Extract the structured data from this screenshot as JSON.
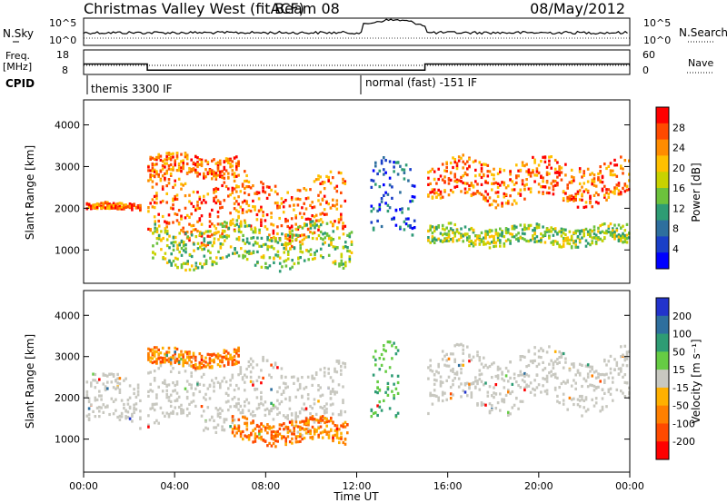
{
  "header": {
    "station": "Christmas Valley West (fitACF)",
    "beam": "Beam 08",
    "date": "08/May/2012"
  },
  "chart_data": [
    {
      "type": "line",
      "id": "nsky-nsearch",
      "left_label": "N.Sky",
      "right_label": "N.Search",
      "y_ticks_left": [
        "10^5",
        "10^0"
      ],
      "y_ticks_right": [
        "10^5",
        "10^0"
      ],
      "x_range_hours": [
        0,
        24
      ],
      "note": "noise level traces"
    },
    {
      "type": "line",
      "id": "freq-nave",
      "left_label": "Freq. [MHz]",
      "right_label": "Nave",
      "y_ticks_left": [
        "18",
        "8"
      ],
      "y_ticks_right": [
        "60",
        "0"
      ],
      "freq_steps": [
        {
          "from_hour": 0.0,
          "to_hour": 2.8,
          "value": 13.0
        },
        {
          "from_hour": 2.8,
          "to_hour": 12.1,
          "value": 10.5
        },
        {
          "from_hour": 12.1,
          "to_hour": 15.0,
          "value": 10.5
        },
        {
          "from_hour": 15.0,
          "to_hour": 24.0,
          "value": 13.0
        }
      ]
    },
    {
      "type": "table",
      "id": "cpid",
      "label": "CPID",
      "segments": [
        {
          "from_hour": 0.0,
          "to_hour": 12.1,
          "text": "themis 3300 IF"
        },
        {
          "from_hour": 12.1,
          "to_hour": 24.0,
          "text": "normal (fast) -151 IF"
        }
      ]
    },
    {
      "type": "heatmap",
      "id": "power",
      "ylabel": "Slant Range [km]",
      "ylim": [
        200,
        4600
      ],
      "y_ticks": [
        1000,
        2000,
        3000,
        4000
      ],
      "x_range_hours": [
        0,
        24
      ],
      "colorbar": {
        "label": "Power [dB]",
        "ticks": [
          "28",
          "24",
          "20",
          "16",
          "12",
          "8",
          "4"
        ],
        "colors": [
          "#ff0000",
          "#ff4a00",
          "#ff8c00",
          "#ffc000",
          "#c8d200",
          "#6cc23c",
          "#2e9c74",
          "#2e6f9e",
          "#1a3fc8",
          "#0000ff"
        ]
      },
      "bands": [
        {
          "from_hour": 0.1,
          "to_hour": 2.5,
          "range_start": 2000,
          "range_end": 2150,
          "level": "high"
        },
        {
          "from_hour": 2.8,
          "to_hour": 6.8,
          "range_start": 2800,
          "range_end": 3300,
          "level": "high"
        },
        {
          "from_hour": 2.8,
          "to_hour": 11.5,
          "range_start": 1350,
          "range_end": 2700,
          "level": "high"
        },
        {
          "from_hour": 3.0,
          "to_hour": 11.8,
          "range_start": 650,
          "range_end": 1600,
          "level": "mid"
        },
        {
          "from_hour": 12.6,
          "to_hour": 14.5,
          "range_start": 1300,
          "range_end": 3000,
          "level": "low"
        },
        {
          "from_hour": 15.1,
          "to_hour": 24.0,
          "range_start": 2200,
          "range_end": 3150,
          "level": "high"
        },
        {
          "from_hour": 15.1,
          "to_hour": 24.0,
          "range_start": 1150,
          "range_end": 1600,
          "level": "mid"
        }
      ]
    },
    {
      "type": "heatmap",
      "id": "velocity",
      "ylabel": "Slant Range [km]",
      "xlabel": "Time UT",
      "ylim": [
        200,
        4600
      ],
      "y_ticks": [
        1000,
        2000,
        3000,
        4000
      ],
      "x_ticks": [
        "00:00",
        "04:00",
        "08:00",
        "12:00",
        "16:00",
        "20:00",
        "00:00"
      ],
      "x_range_hours": [
        0,
        24
      ],
      "colorbar": {
        "label": "Velocity [m s⁻¹]",
        "ticks": [
          "200",
          "100",
          "50",
          "15",
          "-15",
          "-50",
          "-100",
          "-200"
        ],
        "colors": [
          "#2233cc",
          "#2e6f9e",
          "#2e9c74",
          "#66cc44",
          "#c8c8c0",
          "#ffb000",
          "#ff8000",
          "#ff4a00",
          "#ff0000"
        ]
      },
      "bands": [
        {
          "from_hour": 0.1,
          "to_hour": 2.5,
          "range_start": 1400,
          "range_end": 2500,
          "level": "ground"
        },
        {
          "from_hour": 2.8,
          "to_hour": 11.5,
          "range_start": 1350,
          "range_end": 2800,
          "level": "ground"
        },
        {
          "from_hour": 2.8,
          "to_hour": 6.8,
          "range_start": 2800,
          "range_end": 3200,
          "level": "neg"
        },
        {
          "from_hour": 6.5,
          "to_hour": 11.6,
          "range_start": 950,
          "range_end": 1500,
          "level": "neg"
        },
        {
          "from_hour": 12.6,
          "to_hour": 13.8,
          "range_start": 1300,
          "range_end": 3100,
          "level": "pos"
        },
        {
          "from_hour": 15.1,
          "to_hour": 24.0,
          "range_start": 1800,
          "range_end": 3100,
          "level": "ground"
        }
      ]
    }
  ]
}
